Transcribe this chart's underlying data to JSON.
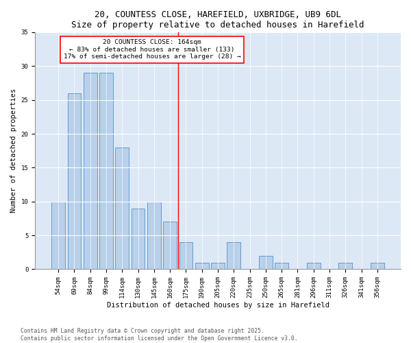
{
  "title": "20, COUNTESS CLOSE, HAREFIELD, UXBRIDGE, UB9 6DL",
  "subtitle": "Size of property relative to detached houses in Harefield",
  "xlabel": "Distribution of detached houses by size in Harefield",
  "ylabel": "Number of detached properties",
  "background_color": "#dce8f5",
  "fig_background_color": "#ffffff",
  "bar_color": "#b8d0ea",
  "bar_edge_color": "#6699cc",
  "categories": [
    "54sqm",
    "69sqm",
    "84sqm",
    "99sqm",
    "114sqm",
    "130sqm",
    "145sqm",
    "160sqm",
    "175sqm",
    "190sqm",
    "205sqm",
    "220sqm",
    "235sqm",
    "250sqm",
    "265sqm",
    "281sqm",
    "296sqm",
    "311sqm",
    "326sqm",
    "341sqm",
    "356sqm"
  ],
  "values": [
    10,
    26,
    29,
    29,
    18,
    9,
    10,
    7,
    4,
    1,
    1,
    4,
    0,
    2,
    1,
    0,
    1,
    0,
    1,
    0,
    1
  ],
  "property_label": "20 COUNTESS CLOSE: 164sqm",
  "annotation_line1": "← 83% of detached houses are smaller (133)",
  "annotation_line2": "17% of semi-detached houses are larger (28) →",
  "vline_position": 7.5,
  "ylim": [
    0,
    35
  ],
  "yticks": [
    0,
    5,
    10,
    15,
    20,
    25,
    30,
    35
  ],
  "footer_line1": "Contains HM Land Registry data © Crown copyright and database right 2025.",
  "footer_line2": "Contains public sector information licensed under the Open Government Licence v3.0.",
  "title_fontsize": 9,
  "axis_fontsize": 7.5,
  "tick_fontsize": 6.5,
  "annotation_fontsize": 6.8,
  "footer_fontsize": 5.8,
  "ylabel_fontsize": 7.5
}
